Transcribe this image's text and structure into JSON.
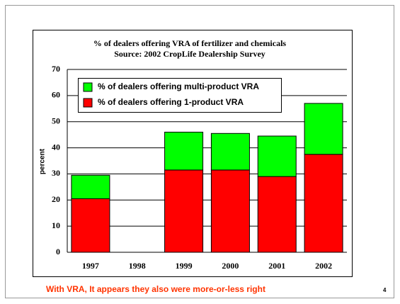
{
  "chart_data": {
    "type": "stacked-bar",
    "title": "% of dealers offering VRA of fertilizer and chemicals",
    "subtitle": "Source:  2002 CropLife Dealership Survey",
    "y_label": "percent",
    "categories": [
      "1997",
      "1998",
      "1999",
      "2000",
      "2001",
      "2002"
    ],
    "series": [
      {
        "name": "% of dealers offering 1-product VRA",
        "color": "#ff0000",
        "values": [
          20.5,
          null,
          31.5,
          31.5,
          29,
          37.5
        ]
      },
      {
        "name": "% of dealers offering multi-product VRA",
        "color": "#00ff00",
        "values": [
          9,
          null,
          14.5,
          14,
          15.5,
          19.5
        ]
      }
    ],
    "ylim": [
      0,
      70
    ],
    "yticks": [
      0,
      10,
      20,
      30,
      40,
      50,
      60,
      70
    ],
    "grid": true
  },
  "footer": {
    "note": "With VRA, It appears they also were more-or-less right",
    "page": "4"
  }
}
